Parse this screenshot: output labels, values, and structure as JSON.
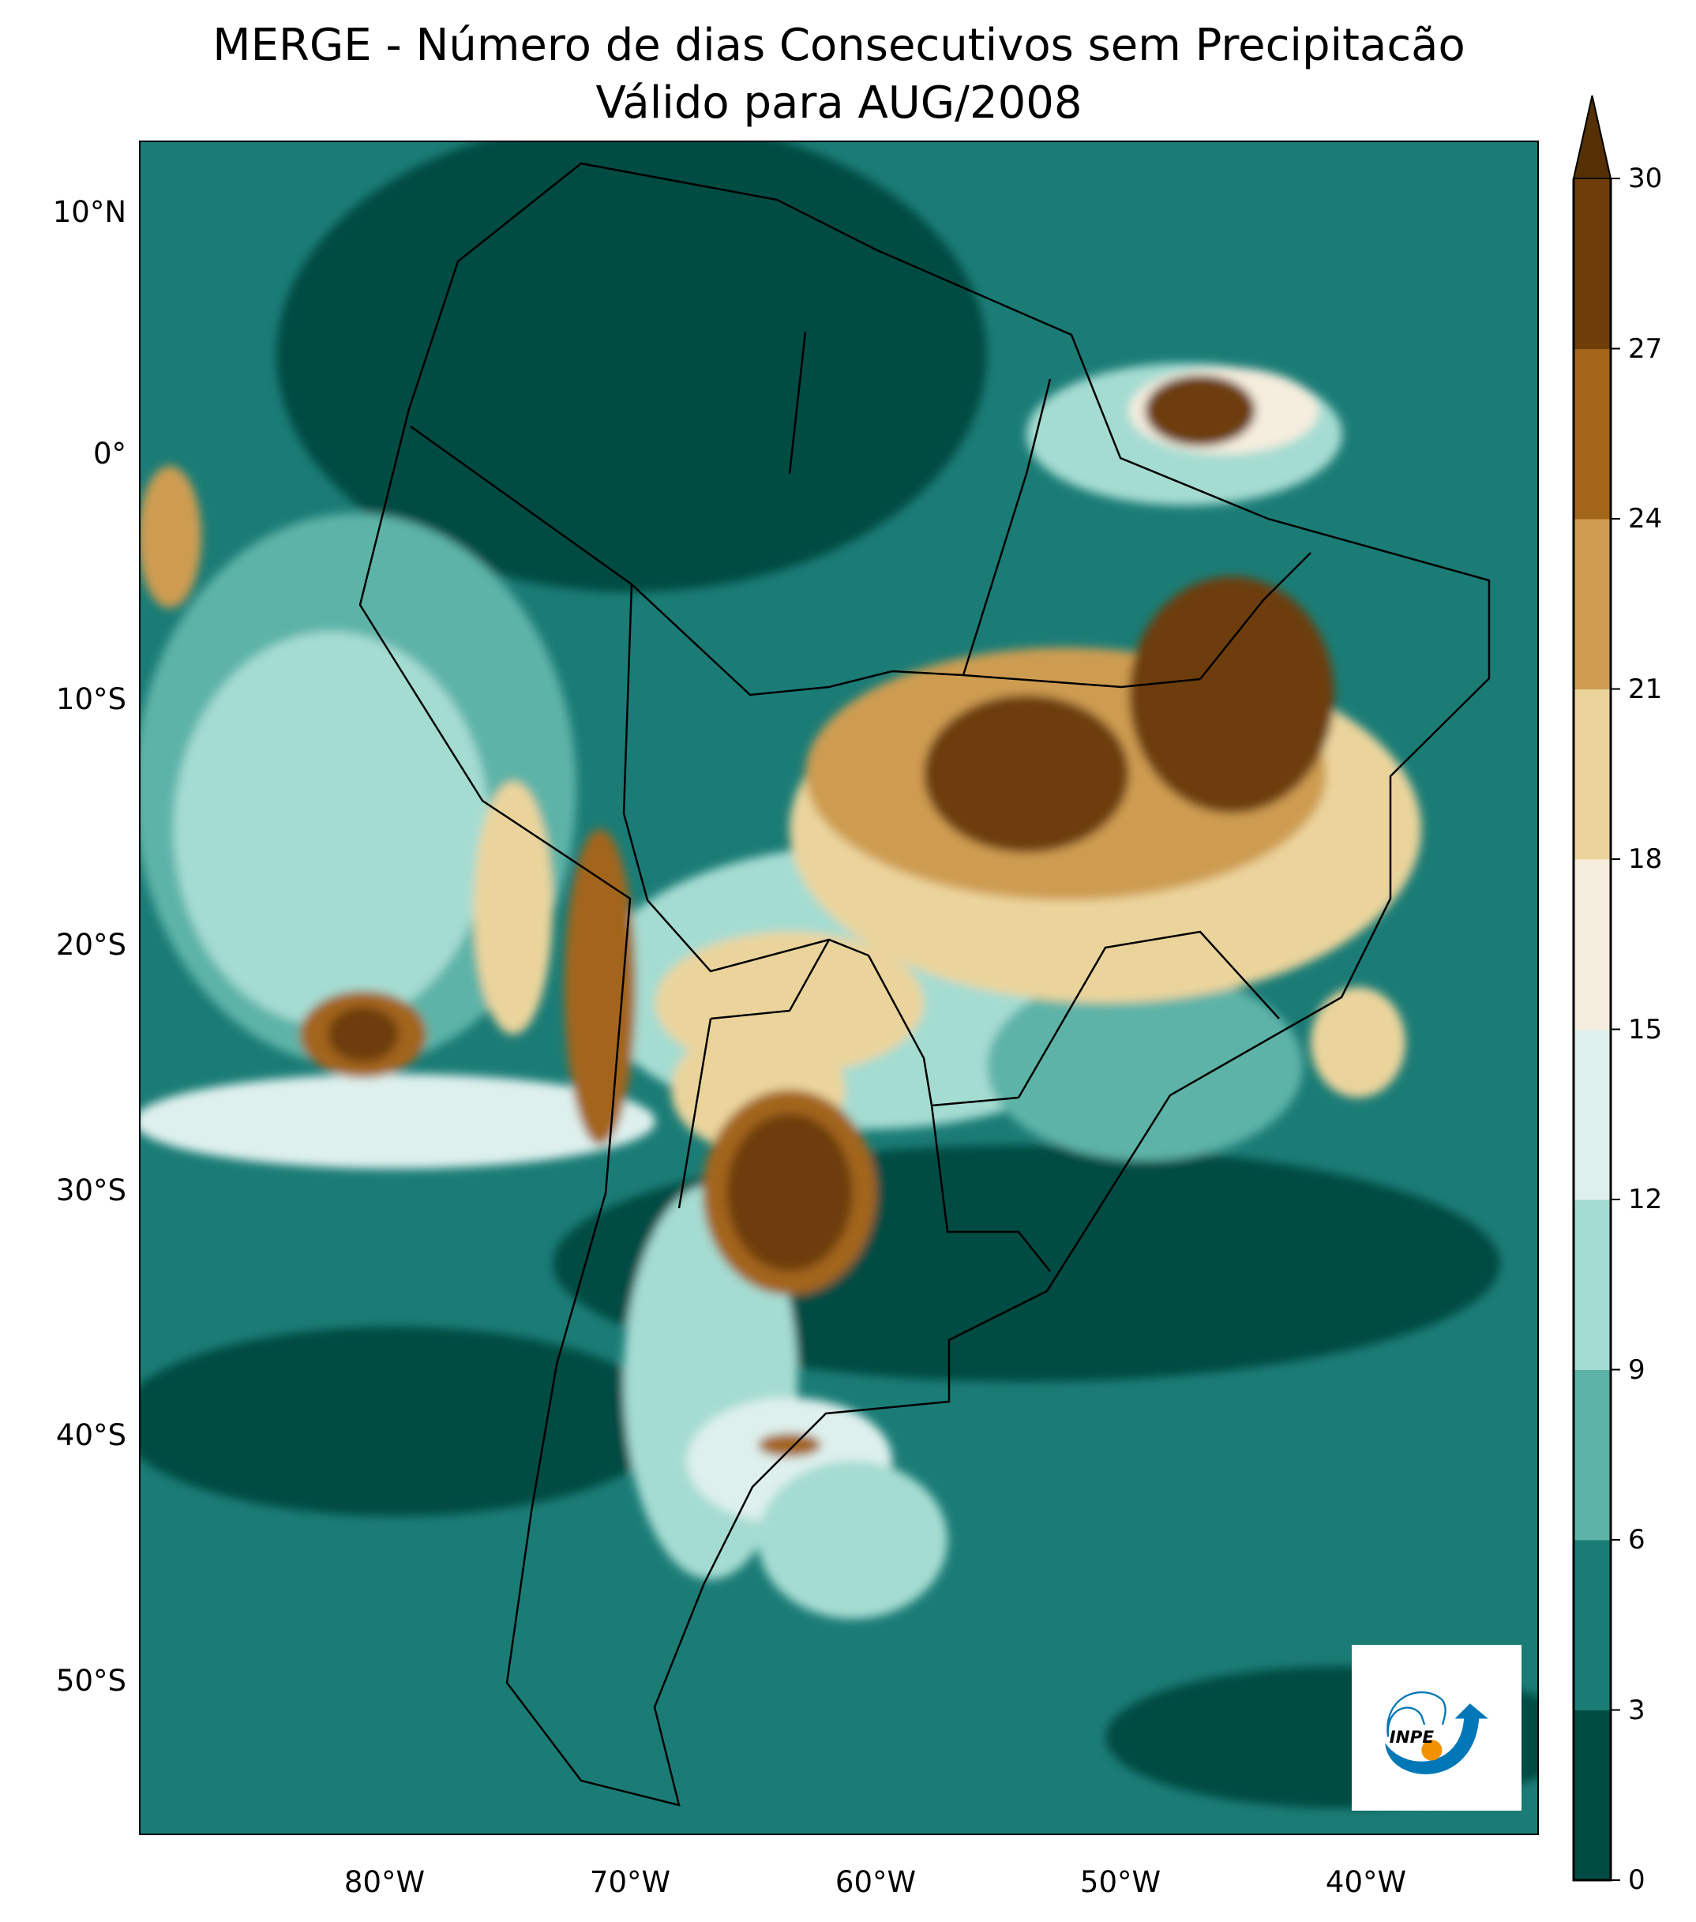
{
  "title": {
    "line1": "MERGE - Número de dias Consecutivos sem Precipitacão",
    "line2": "Válido para AUG/2008"
  },
  "axes": {
    "lat_ticks": [
      "10°N",
      "0°",
      "10°S",
      "20°S",
      "30°S",
      "40°S",
      "50°S"
    ],
    "lon_ticks": [
      "80°W",
      "70°W",
      "60°W",
      "50°W",
      "40°W"
    ]
  },
  "colorbar": {
    "ticks": [
      "0",
      "3",
      "6",
      "9",
      "12",
      "15",
      "18",
      "21",
      "24",
      "27",
      "30"
    ],
    "colors": [
      "#004c42",
      "#1b7c76",
      "#5db3a7",
      "#a5dcd2",
      "#def0ed",
      "#f5edde",
      "#ebd49c",
      "#ce9c51",
      "#a3651a",
      "#6d3e08"
    ],
    "extend_color": "#553005",
    "extend": "max"
  },
  "logo": {
    "text": "INPE",
    "blue": "#0077b6",
    "orange": "#f39200"
  }
}
